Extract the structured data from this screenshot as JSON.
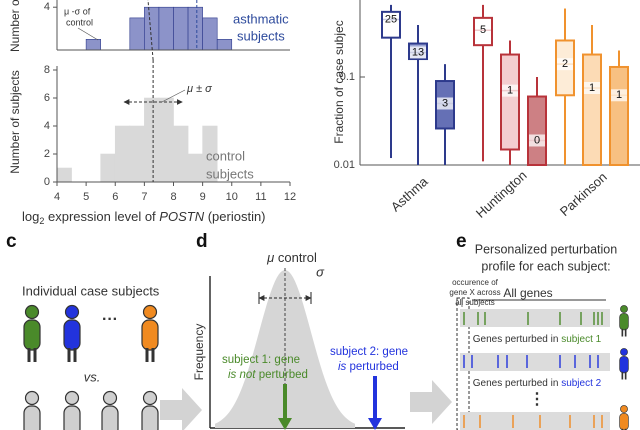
{
  "chart_data": [
    {
      "type": "histogram",
      "ylabel": "Number of",
      "bins": [
        5,
        5.5,
        6,
        6.5,
        7,
        7.5,
        8,
        8.5,
        9,
        9.5,
        10
      ],
      "counts": [
        1,
        0,
        0,
        3,
        4,
        4,
        4,
        4,
        3,
        1
      ],
      "color": "#8c93c9",
      "edge": "#2d3a8c",
      "xlim": [
        4,
        12
      ],
      "ylim": [
        0,
        4.3
      ],
      "yticks": [
        4
      ],
      "mean": 8.8,
      "annotation": [
        "μ -σ of",
        "control"
      ],
      "group_label": [
        "asthmatic",
        "subjects"
      ],
      "label_color": "#2d4a9c"
    },
    {
      "type": "histogram",
      "ylabel": "Number of subjects",
      "xlabel": [
        "log",
        "2",
        "expression level of",
        "POSTN",
        "(periostin)"
      ],
      "bins": [
        4,
        4.5,
        5,
        5.5,
        6,
        6.5,
        7,
        7.5,
        8,
        8.5,
        9,
        9.5
      ],
      "counts": [
        1,
        0,
        0,
        2,
        4,
        4,
        6,
        6,
        4,
        2,
        4
      ],
      "color": "#d9d9d9",
      "edge": "#d9d9d9",
      "xlim": [
        4,
        12
      ],
      "ylim": [
        0,
        8
      ],
      "xticks": [
        4,
        5,
        6,
        7,
        8,
        9,
        10,
        11,
        12
      ],
      "yticks": [
        0,
        2,
        4,
        6,
        8
      ],
      "mean": 7.3,
      "sd": 1.0,
      "mu_sigma": "μ ± σ",
      "group_label": [
        "control",
        "subjects"
      ],
      "label_color": "#777"
    },
    {
      "type": "box",
      "ylabel": "Fraction of case subjec",
      "log": true,
      "ylim": [
        0.01,
        0.75
      ],
      "yticks": [
        0.01,
        0.1
      ],
      "categories": [
        "Asthma",
        "Huntington",
        "Parkinson"
      ],
      "groups": [
        {
          "boxes": [
            {
              "whislo": 0.012,
              "q1": 0.28,
              "med": 0.45,
              "q3": 0.55,
              "whishi": 0.66,
              "n": 25,
              "stroke": "#2d3a8c",
              "fill": "#ffffff"
            },
            {
              "whislo": 0.01,
              "q1": 0.16,
              "med": 0.19,
              "q3": 0.24,
              "whishi": 0.39,
              "n": 13,
              "stroke": "#2d3a8c",
              "fill": "#8a95cc"
            },
            {
              "whislo": 0.01,
              "q1": 0.026,
              "med": 0.05,
              "q3": 0.09,
              "whishi": 0.14,
              "n": 3,
              "stroke": "#2d3a8c",
              "fill": "#4a57a8"
            }
          ]
        },
        {
          "boxes": [
            {
              "whislo": 0.011,
              "q1": 0.23,
              "med": 0.34,
              "q3": 0.47,
              "whishi": 0.66,
              "n": 5,
              "stroke": "#b8333a",
              "fill": "#ffffff"
            },
            {
              "whislo": 0.01,
              "q1": 0.015,
              "med": 0.07,
              "q3": 0.18,
              "whishi": 0.26,
              "n": 1,
              "stroke": "#b8333a",
              "fill": "#f2c6c8"
            },
            {
              "whislo": 0.01,
              "q1": 0.01,
              "med": 0.019,
              "q3": 0.06,
              "whishi": 0.1,
              "n": 0,
              "stroke": "#b8333a",
              "fill": "#c46a6e"
            }
          ]
        },
        {
          "boxes": [
            {
              "whislo": 0.01,
              "q1": 0.062,
              "med": 0.14,
              "q3": 0.26,
              "whishi": 0.6,
              "n": 2,
              "stroke": "#f0922e",
              "fill": "#fde9d0"
            },
            {
              "whislo": 0.01,
              "q1": 0.01,
              "med": 0.075,
              "q3": 0.18,
              "whishi": 0.39,
              "n": 1,
              "stroke": "#f0922e",
              "fill": "#fbd5a8"
            },
            {
              "whislo": 0.01,
              "q1": 0.01,
              "med": 0.062,
              "q3": 0.13,
              "whishi": 0.2,
              "n": 1,
              "stroke": "#f0922e",
              "fill": "#f6b56c"
            }
          ]
        }
      ]
    }
  ],
  "panel_labels": [
    "c",
    "d",
    "e"
  ],
  "panel_c": {
    "title": "Individual case subjects",
    "ellipsis": "···",
    "vs": "vs."
  },
  "panel_d": {
    "ylabel": "Frequency",
    "mu": "μ",
    "control": "control",
    "sigma": "σ",
    "subject1": [
      "subject 1: gene",
      "is not",
      "perturbed"
    ],
    "subject2": [
      "subject 2: gene",
      "is",
      "perturbed"
    ]
  },
  "panel_e": {
    "title": [
      "Personalized perturbation",
      "profile for each subject:"
    ],
    "occurrence": [
      "occurence of",
      "gene X across",
      "all subjects"
    ],
    "all_genes": "All genes",
    "row1": [
      "Genes perturbed in",
      "subject 1"
    ],
    "row2": [
      "Genes perturbed in",
      "subject 2"
    ],
    "dots": "⋮"
  }
}
